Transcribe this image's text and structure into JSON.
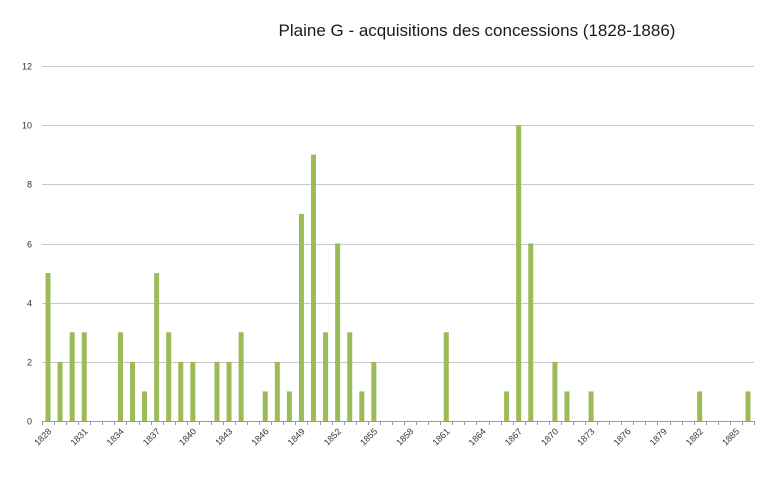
{
  "chart_data": {
    "type": "bar",
    "title": "Plaine G - acquisitions des concessions (1828-1886)",
    "xlabel": "",
    "ylabel": "",
    "ylim": [
      0,
      12
    ],
    "yticks": [
      0,
      2,
      4,
      6,
      8,
      10,
      12
    ],
    "grid": true,
    "legend": "none",
    "bar_color": "#9bbb59",
    "categories": [
      1828,
      1829,
      1830,
      1831,
      1832,
      1833,
      1834,
      1835,
      1836,
      1837,
      1838,
      1839,
      1840,
      1841,
      1842,
      1843,
      1844,
      1845,
      1846,
      1847,
      1848,
      1849,
      1850,
      1851,
      1852,
      1853,
      1854,
      1855,
      1856,
      1857,
      1858,
      1859,
      1860,
      1861,
      1862,
      1863,
      1864,
      1865,
      1866,
      1867,
      1868,
      1869,
      1870,
      1871,
      1872,
      1873,
      1874,
      1875,
      1876,
      1877,
      1878,
      1879,
      1880,
      1881,
      1882,
      1883,
      1884,
      1885,
      1886
    ],
    "tick_labels": [
      "1828",
      "1831",
      "1834",
      "1837",
      "1840",
      "1843",
      "1846",
      "1849",
      "1852",
      "1855",
      "1858",
      "1861",
      "1864",
      "1867",
      "1870",
      "1873",
      "1876",
      "1879",
      "1882",
      "1885"
    ],
    "values": [
      5,
      2,
      3,
      3,
      0,
      0,
      3,
      2,
      1,
      5,
      3,
      2,
      2,
      0,
      2,
      2,
      3,
      0,
      1,
      2,
      1,
      7,
      9,
      3,
      6,
      3,
      1,
      2,
      0,
      0,
      0,
      0,
      0,
      3,
      0,
      0,
      0,
      0,
      1,
      10,
      6,
      0,
      2,
      1,
      0,
      1,
      0,
      0,
      0,
      0,
      0,
      0,
      0,
      0,
      1,
      0,
      0,
      0,
      1
    ]
  }
}
